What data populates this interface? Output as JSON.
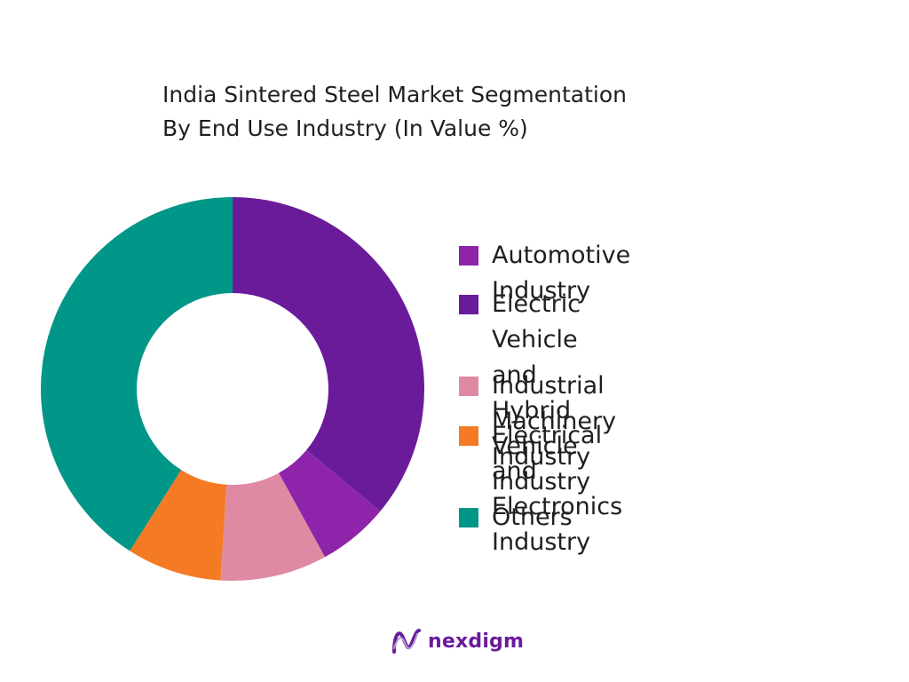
{
  "chart_data": {
    "type": "pie",
    "donut": true,
    "title": [
      "India Sintered Steel Market Segmentation",
      "By End Use Industry (In Value %)"
    ],
    "slices": [
      {
        "label": "Electric Vehicle and Hybrid\nVehicle Industry",
        "value": 36,
        "color": "#6a1b9a"
      },
      {
        "label": "Automotive Industry",
        "value": 6,
        "color": "#8e24aa"
      },
      {
        "label": "Industrial Machinery Industry",
        "value": 9,
        "color": "#df8aa2"
      },
      {
        "label": "Electrical and Electronics\nIndustry",
        "value": 8,
        "color": "#f47b24"
      },
      {
        "label": "Others",
        "value": 41,
        "color": "#009688"
      }
    ],
    "legend": [
      {
        "label": "Automotive Industry",
        "color": "#8e24aa"
      },
      {
        "label": "Electric Vehicle and Hybrid\nVehicle Industry",
        "color": "#6a1b9a"
      },
      {
        "label": "Industrial Machinery Industry",
        "color": "#df8aa2"
      },
      {
        "label": "Electrical and Electronics\nIndustry",
        "color": "#f47b24"
      },
      {
        "label": "Others",
        "color": "#009688"
      }
    ],
    "legend_position": "right"
  },
  "branding": {
    "logo_text": "nexdigm",
    "logo_color": "#6a1b9a"
  }
}
